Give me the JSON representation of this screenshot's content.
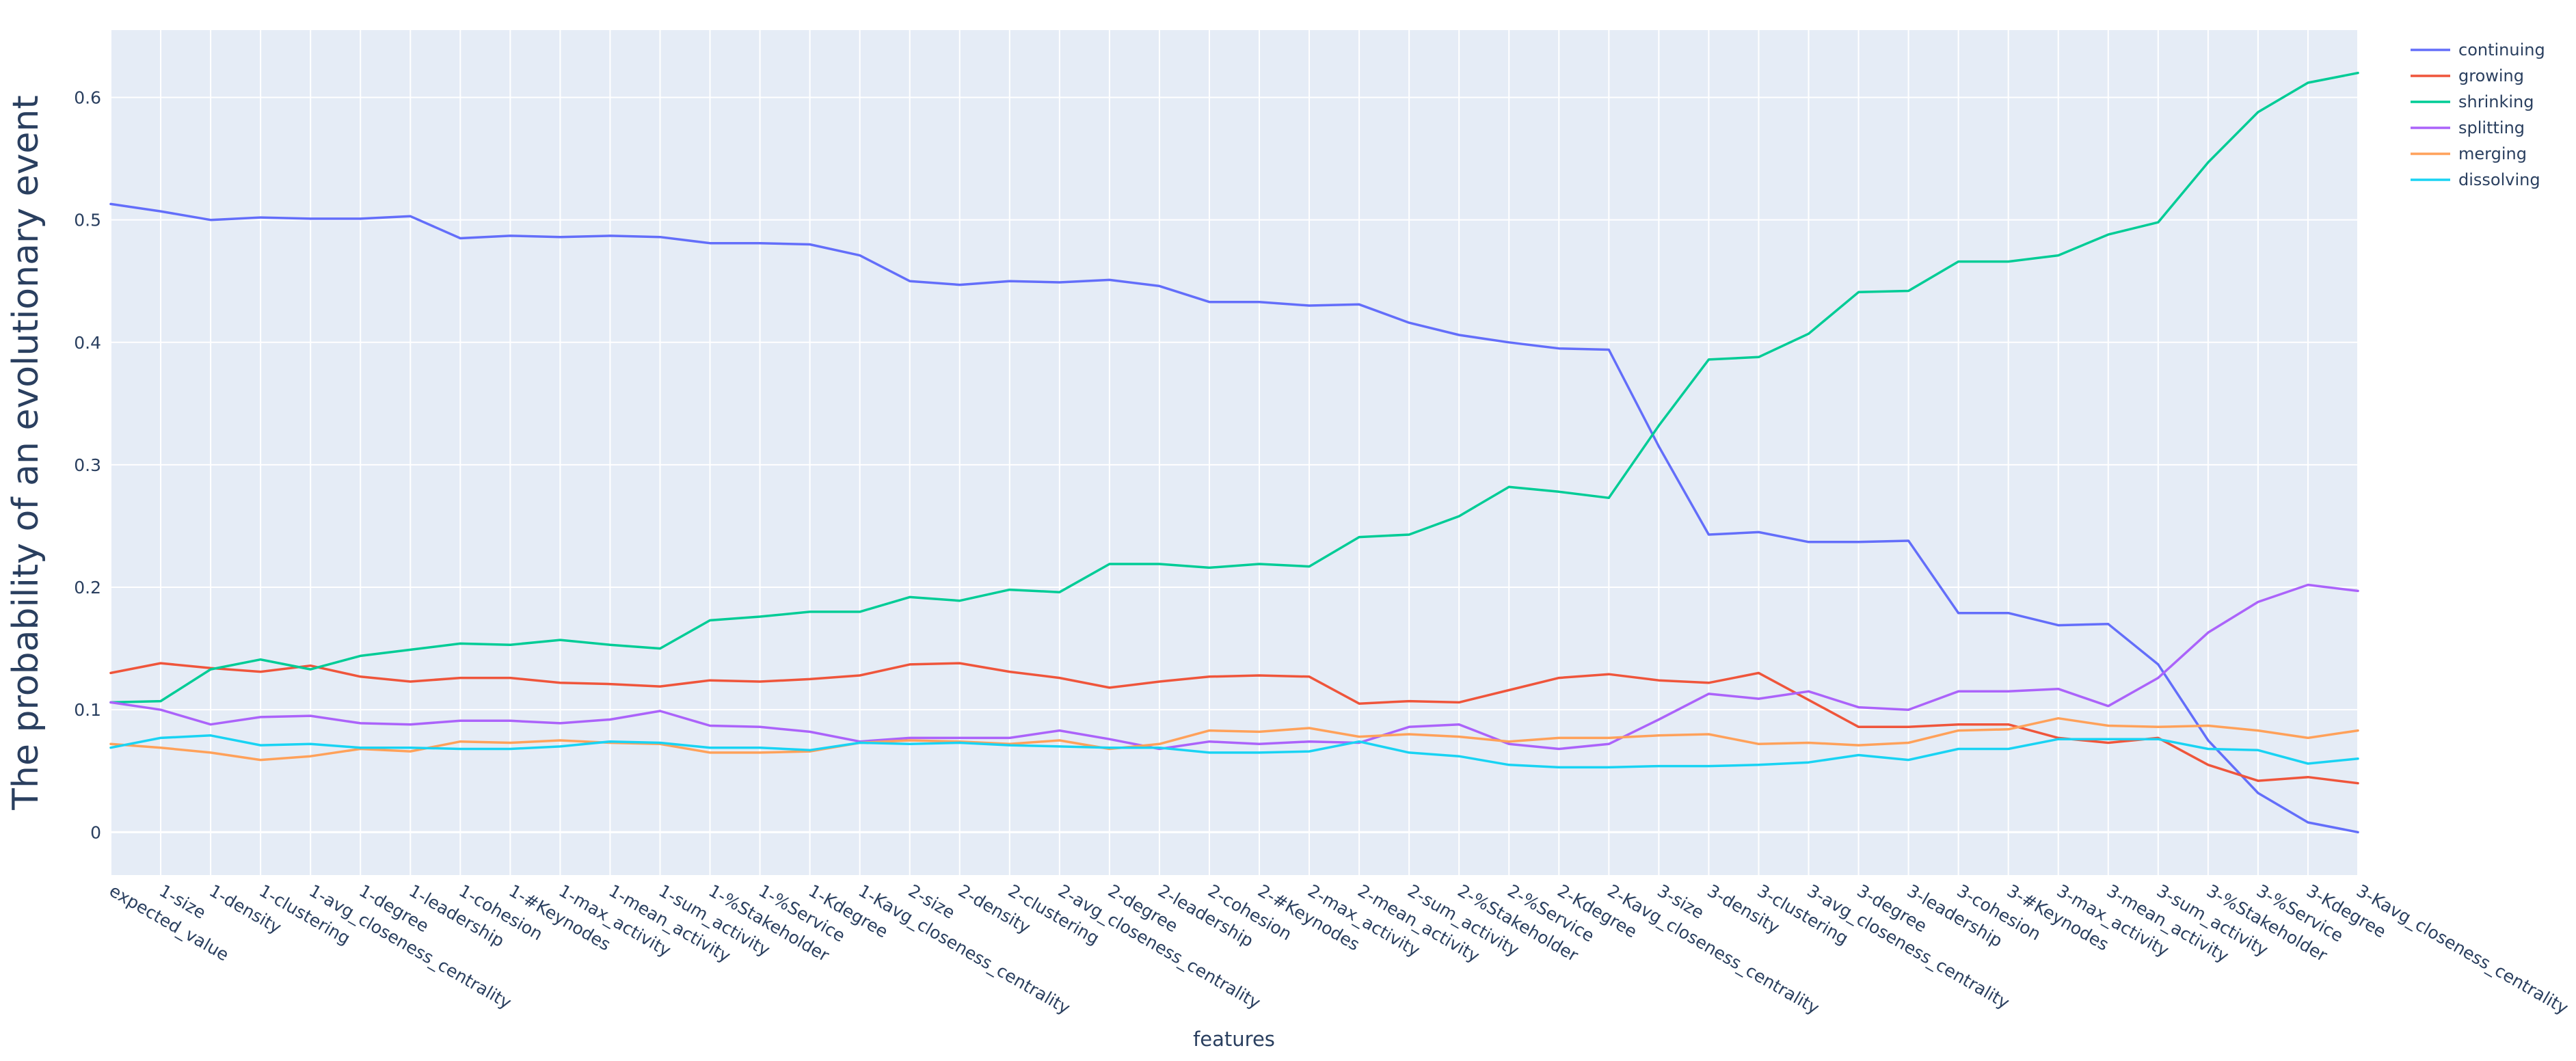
{
  "chart_data": {
    "type": "line",
    "title": "",
    "xlabel": "features",
    "ylabel": "The probability of an evolutionary event",
    "ylim": [
      -0.035,
      0.655
    ],
    "yticks": [
      0,
      0.1,
      0.2,
      0.3,
      0.4,
      0.5,
      0.6
    ],
    "ytick_labels": [
      "0",
      "0.1",
      "0.2",
      "0.3",
      "0.4",
      "0.5",
      "0.6"
    ],
    "grid": true,
    "legend_position": "top-right",
    "background": "#e5ecf6",
    "categories": [
      "expected_value",
      "1-size",
      "1-density",
      "1-clustering",
      "1-avg_closeness_centrality",
      "1-degree",
      "1-leadership",
      "1-cohesion",
      "1-#Keynodes",
      "1-max_activity",
      "1-mean_activity",
      "1-sum_activity",
      "1-%Stakeholder",
      "1-%Service",
      "1-Kdegree",
      "1-Kavg_closeness_centrality",
      "2-size",
      "2-density",
      "2-clustering",
      "2-avg_closeness_centrality",
      "2-degree",
      "2-leadership",
      "2-cohesion",
      "2-#Keynodes",
      "2-max_activity",
      "2-mean_activity",
      "2-sum_activity",
      "2-%Stakeholder",
      "2-%Service",
      "2-Kdegree",
      "2-Kavg_closeness_centrality",
      "3-size",
      "3-density",
      "3-clustering",
      "3-avg_closeness_centrality",
      "3-degree",
      "3-leadership",
      "3-cohesion",
      "3-#Keynodes",
      "3-max_activity",
      "3-mean_activity",
      "3-sum_activity",
      "3-%Stakeholder",
      "3-%Service",
      "3-Kdegree",
      "3-Kavg_closeness_centrality"
    ],
    "series": [
      {
        "name": "continuing",
        "color": "#636efa",
        "values": [
          0.513,
          0.507,
          0.5,
          0.502,
          0.501,
          0.501,
          0.503,
          0.485,
          0.487,
          0.486,
          0.487,
          0.486,
          0.481,
          0.481,
          0.48,
          0.471,
          0.45,
          0.447,
          0.45,
          0.449,
          0.451,
          0.446,
          0.433,
          0.433,
          0.43,
          0.431,
          0.416,
          0.406,
          0.4,
          0.395,
          0.394,
          0.315,
          0.243,
          0.245,
          0.237,
          0.237,
          0.238,
          0.179,
          0.179,
          0.169,
          0.17,
          0.137,
          0.075,
          0.032,
          0.008,
          0.0
        ]
      },
      {
        "name": "growing",
        "color": "#ef553b",
        "values": [
          0.13,
          0.138,
          0.134,
          0.131,
          0.136,
          0.127,
          0.123,
          0.126,
          0.126,
          0.122,
          0.121,
          0.119,
          0.124,
          0.123,
          0.125,
          0.128,
          0.137,
          0.138,
          0.131,
          0.126,
          0.118,
          0.123,
          0.127,
          0.128,
          0.127,
          0.105,
          0.107,
          0.106,
          0.116,
          0.126,
          0.129,
          0.124,
          0.122,
          0.13,
          0.108,
          0.086,
          0.086,
          0.088,
          0.088,
          0.077,
          0.073,
          0.077,
          0.055,
          0.042,
          0.045,
          0.04
        ]
      },
      {
        "name": "shrinking",
        "color": "#00cc96",
        "values": [
          0.106,
          0.107,
          0.133,
          0.141,
          0.133,
          0.144,
          0.149,
          0.154,
          0.153,
          0.157,
          0.153,
          0.15,
          0.173,
          0.176,
          0.18,
          0.18,
          0.192,
          0.189,
          0.198,
          0.196,
          0.219,
          0.219,
          0.216,
          0.219,
          0.217,
          0.241,
          0.243,
          0.258,
          0.282,
          0.278,
          0.273,
          0.332,
          0.386,
          0.388,
          0.407,
          0.441,
          0.442,
          0.466,
          0.466,
          0.471,
          0.488,
          0.498,
          0.547,
          0.588,
          0.612,
          0.62
        ]
      },
      {
        "name": "splitting",
        "color": "#ab63fa",
        "values": [
          0.106,
          0.1,
          0.088,
          0.094,
          0.095,
          0.089,
          0.088,
          0.091,
          0.091,
          0.089,
          0.092,
          0.099,
          0.087,
          0.086,
          0.082,
          0.074,
          0.077,
          0.077,
          0.077,
          0.083,
          0.076,
          0.068,
          0.074,
          0.072,
          0.074,
          0.073,
          0.086,
          0.088,
          0.072,
          0.068,
          0.072,
          0.092,
          0.113,
          0.109,
          0.115,
          0.102,
          0.1,
          0.115,
          0.115,
          0.117,
          0.103,
          0.126,
          0.163,
          0.188,
          0.202,
          0.197
        ]
      },
      {
        "name": "merging",
        "color": "#ffa15a",
        "values": [
          0.072,
          0.069,
          0.065,
          0.059,
          0.062,
          0.068,
          0.066,
          0.074,
          0.073,
          0.075,
          0.073,
          0.072,
          0.065,
          0.065,
          0.066,
          0.073,
          0.075,
          0.074,
          0.072,
          0.075,
          0.068,
          0.072,
          0.083,
          0.082,
          0.085,
          0.078,
          0.08,
          0.078,
          0.074,
          0.077,
          0.077,
          0.079,
          0.08,
          0.072,
          0.073,
          0.071,
          0.073,
          0.083,
          0.084,
          0.093,
          0.087,
          0.086,
          0.087,
          0.083,
          0.077,
          0.083
        ]
      },
      {
        "name": "dissolving",
        "color": "#19d3f3",
        "values": [
          0.069,
          0.077,
          0.079,
          0.071,
          0.072,
          0.069,
          0.069,
          0.068,
          0.068,
          0.07,
          0.074,
          0.073,
          0.069,
          0.069,
          0.067,
          0.073,
          0.072,
          0.073,
          0.071,
          0.07,
          0.069,
          0.069,
          0.065,
          0.065,
          0.066,
          0.074,
          0.065,
          0.062,
          0.055,
          0.053,
          0.053,
          0.054,
          0.054,
          0.055,
          0.057,
          0.063,
          0.059,
          0.068,
          0.068,
          0.076,
          0.076,
          0.076,
          0.068,
          0.067,
          0.056,
          0.06
        ]
      }
    ]
  }
}
